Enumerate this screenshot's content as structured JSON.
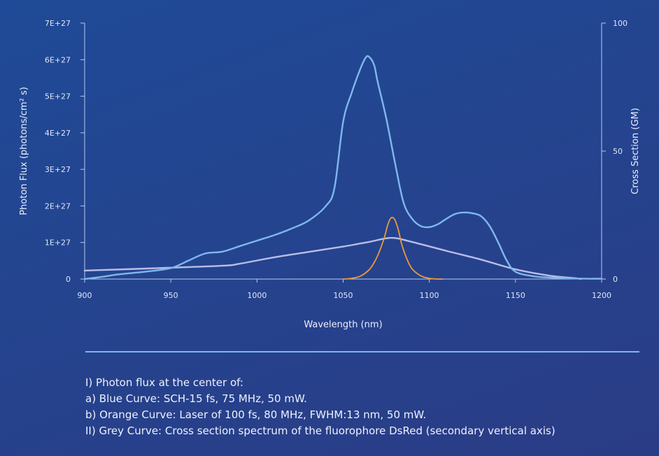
{
  "chart_data": {
    "type": "line",
    "xlabel": "Wavelength (nm)",
    "ylabel": "Photon Flux (photons/cm² s)",
    "y2label": "Cross Section (GM)",
    "xlim": [
      900,
      1200
    ],
    "ylim": [
      0,
      7e+27
    ],
    "y2lim": [
      0,
      100
    ],
    "grid": false,
    "x_ticks": [
      900,
      950,
      1000,
      1050,
      1100,
      1150,
      1200
    ],
    "y_ticks": [
      {
        "value": 0,
        "label": "0"
      },
      {
        "value": 1e+27,
        "label": "1E+27"
      },
      {
        "value": 2e+27,
        "label": "2E+27"
      },
      {
        "value": 3e+27,
        "label": "3E+27"
      },
      {
        "value": 4e+27,
        "label": "4E+27"
      },
      {
        "value": 5e+27,
        "label": "5E+27"
      },
      {
        "value": 6e+27,
        "label": "6E+27"
      },
      {
        "value": 7e+27,
        "label": "7E+27"
      }
    ],
    "y2_ticks": [
      {
        "value": 0,
        "label": "0"
      },
      {
        "value": 50,
        "label": "50"
      },
      {
        "value": 100,
        "label": "100"
      }
    ],
    "series": [
      {
        "color": "#7fb8ec",
        "axis": "left",
        "x": [
          900,
          910,
          920,
          935,
          950,
          960,
          970,
          980,
          990,
          1000,
          1010,
          1020,
          1030,
          1040,
          1045,
          1050,
          1055,
          1060,
          1063,
          1065,
          1068,
          1070,
          1075,
          1080,
          1085,
          1090,
          1095,
          1100,
          1105,
          1110,
          1115,
          1120,
          1125,
          1130,
          1135,
          1140,
          1145,
          1150,
          1160,
          1170,
          1180,
          1190,
          1200
        ],
        "y": [
          0,
          6e+25,
          1.3e+26,
          2e+26,
          3e+26,
          5e+26,
          7e+26,
          7.5e+26,
          9e+26,
          1.05e+27,
          1.2e+27,
          1.38e+27,
          1.6e+27,
          2e+27,
          2.5e+27,
          4.3e+27,
          5.1e+27,
          5.75e+27,
          6.05e+27,
          6.08e+27,
          5.85e+27,
          5.4e+27,
          4.4e+27,
          3.2e+27,
          2.1e+27,
          1.65e+27,
          1.45e+27,
          1.42e+27,
          1.5e+27,
          1.65e+27,
          1.78e+27,
          1.82e+27,
          1.8e+27,
          1.72e+27,
          1.45e+27,
          1e+27,
          5e+26,
          2e+26,
          8e+25,
          4e+25,
          2e+25,
          1e+25,
          1e+25
        ]
      },
      {
        "color": "#eb9a3c",
        "axis": "left",
        "x": [
          1050,
          1055,
          1060,
          1065,
          1068,
          1071,
          1074,
          1076,
          1078,
          1080,
          1082,
          1084,
          1087,
          1090,
          1095,
          1100,
          1105,
          1108
        ],
        "y": [
          0,
          2e+25,
          8e+25,
          2.5e+26,
          4.5e+26,
          7.5e+26,
          1.15e+27,
          1.5e+27,
          1.68e+27,
          1.62e+27,
          1.35e+27,
          9.5e+26,
          5.5e+26,
          2.8e+26,
          9e+25,
          2e+25,
          0,
          0
        ]
      },
      {
        "color": "#b9bde8",
        "axis": "right",
        "x": [
          900,
          940,
          980,
          990,
          1010,
          1030,
          1050,
          1065,
          1078,
          1090,
          1110,
          1130,
          1150,
          1170,
          1185,
          1188
        ],
        "y": [
          3.3,
          4.2,
          5.2,
          6.0,
          8.5,
          10.6,
          12.7,
          14.5,
          16.1,
          14.5,
          11.0,
          7.6,
          3.8,
          1.3,
          0.3,
          0
        ]
      }
    ]
  },
  "notes": {
    "line1": "I) Photon flux at the center of:",
    "line2": "a) Blue Curve: SCH-15 fs, 75 MHz, 50 mW.",
    "line3": "b) Orange Curve: Laser of 100 fs, 80 MHz, FWHM:13 nm, 50 mW.",
    "line4": "II) Grey Curve: Cross section spectrum of the fluorophore DsRed (secondary vertical axis)"
  },
  "colors": {
    "axis": "#b8c9ee",
    "background_top": "#1f4a97",
    "background_bottom": "#2b3c86"
  }
}
